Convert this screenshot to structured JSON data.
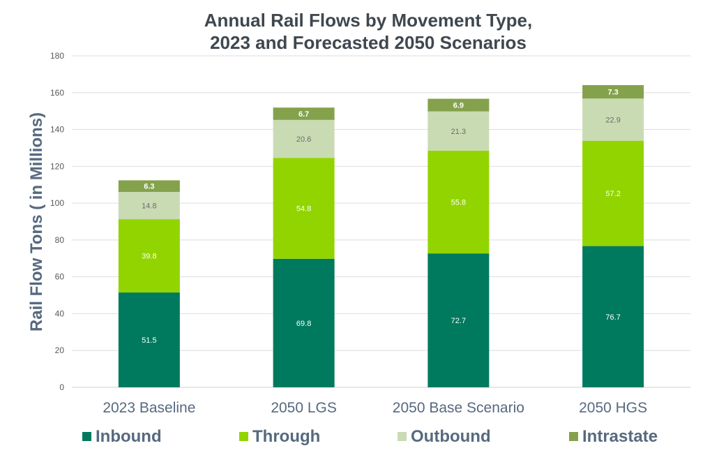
{
  "chart_data": {
    "type": "bar",
    "stacked": true,
    "title": [
      "Annual Rail Flows by Movement Type,",
      "2023 and Forecasted 2050 Scenarios"
    ],
    "xlabel": "",
    "ylabel": "Rail Flow Tons ( in Millions)",
    "ylim": [
      0,
      180
    ],
    "yticks": [
      0,
      20,
      40,
      60,
      80,
      100,
      120,
      140,
      160,
      180
    ],
    "grid": true,
    "legend_position": "bottom",
    "categories": [
      "2023 Baseline",
      "2050 LGS",
      "2050 Base Scenario",
      "2050 HGS"
    ],
    "series": [
      {
        "name": "Inbound",
        "color": "#007A5E",
        "label_color": "#ffffff",
        "values": [
          51.5,
          69.8,
          72.7,
          76.7
        ]
      },
      {
        "name": "Through",
        "color": "#92D400",
        "label_color": "#ffffff",
        "values": [
          39.8,
          54.8,
          55.8,
          57.2
        ]
      },
      {
        "name": "Outbound",
        "color": "#C9DBB3",
        "label_color": "#6b6b6b",
        "values": [
          14.8,
          20.6,
          21.3,
          22.9
        ]
      },
      {
        "name": "Intrastate",
        "color": "#84A24C",
        "label_color": "#ffffff",
        "values": [
          6.3,
          6.7,
          6.9,
          7.3
        ]
      }
    ]
  }
}
